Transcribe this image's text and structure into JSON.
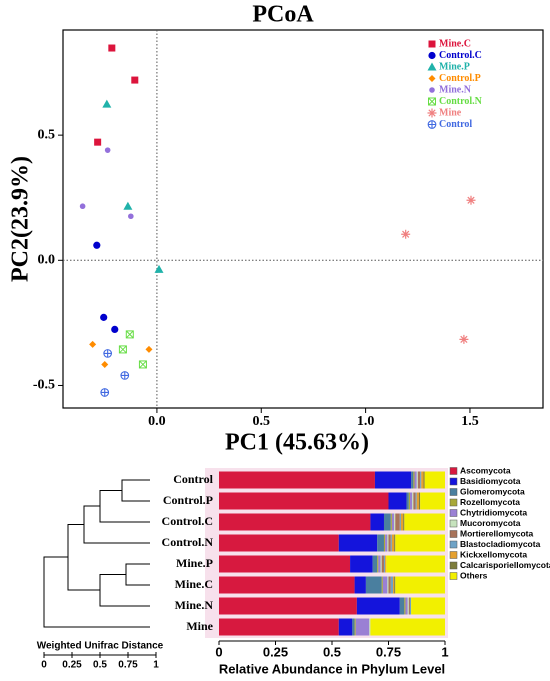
{
  "chart_data": [
    {
      "type": "scatter",
      "title": "PCoA",
      "xlabel": "PC1 (45.63%)",
      "ylabel": "PC2(23.9%)",
      "xlim": [
        -0.45,
        1.85
      ],
      "ylim": [
        -0.59,
        0.92
      ],
      "xticks": [
        {
          "value": 0,
          "label": "0.0"
        },
        0.5,
        {
          "value": 1,
          "label": "1.0"
        },
        {
          "value": 1.5,
          "label": "1.5"
        }
      ],
      "yticks": [
        -0.5,
        {
          "value": 0,
          "label": "0.0"
        },
        0.5
      ],
      "zero_lines": true,
      "legend": "upper right",
      "series": [
        {
          "name": "Mine.C",
          "color": "#dc143c",
          "marker": "square",
          "x": [
            -0.216,
            -0.106,
            -0.284
          ],
          "y": [
            0.848,
            0.72,
            0.472
          ]
        },
        {
          "name": "Control.C",
          "color": "#0000cd",
          "marker": "circle",
          "x": [
            -0.288,
            -0.255,
            -0.202
          ],
          "y": [
            0.06,
            -0.228,
            -0.276
          ]
        },
        {
          "name": "Mine.P",
          "color": "#20b2aa",
          "marker": "triangle",
          "x": [
            -0.24,
            -0.139,
            0.01
          ],
          "y": [
            0.624,
            0.216,
            -0.036
          ]
        },
        {
          "name": "Control.P",
          "color": "#ff8c00",
          "marker": "diamond",
          "x": [
            -0.308,
            -0.25,
            -0.038
          ],
          "y": [
            -0.336,
            -0.416,
            -0.356
          ]
        },
        {
          "name": "Mine.N",
          "color": "#9370db",
          "marker": "dot",
          "x": [
            -0.236,
            -0.356,
            -0.125
          ],
          "y": [
            0.44,
            0.216,
            0.176
          ]
        },
        {
          "name": "Control.N",
          "color": "#66dd44",
          "marker": "boxx",
          "x": [
            -0.13,
            -0.163,
            -0.067
          ],
          "y": [
            -0.296,
            -0.356,
            -0.416
          ]
        },
        {
          "name": "Mine",
          "color": "#f08080",
          "marker": "asterisk",
          "x": [
            1.505,
            1.192,
            1.471
          ],
          "y": [
            0.24,
            0.104,
            -0.316
          ]
        },
        {
          "name": "Control",
          "color": "#4169e1",
          "marker": "circleplus",
          "x": [
            -0.236,
            -0.154,
            -0.25
          ],
          "y": [
            -0.372,
            -0.46,
            -0.528
          ]
        }
      ]
    },
    {
      "type": "stacked_barh",
      "xlabel": "Relative Abundance in Phylum Level",
      "xlim": [
        0,
        1
      ],
      "xticks": [
        0,
        0.25,
        0.5,
        0.75,
        1
      ],
      "categories": [
        "Control",
        "Control.P",
        "Control.C",
        "Control.N",
        "Mine.P",
        "Mine.C",
        "Mine.N",
        "Mine"
      ],
      "series": [
        {
          "name": "Ascomycota",
          "color": "#d7193f",
          "values": [
            0.69,
            0.75,
            0.67,
            0.53,
            0.58,
            0.6,
            0.61,
            0.53
          ]
        },
        {
          "name": "Basidiomycota",
          "color": "#1414dc",
          "values": [
            0.16,
            0.08,
            0.06,
            0.17,
            0.1,
            0.05,
            0.19,
            0.06
          ]
        },
        {
          "name": "Glomeromycota",
          "color": "#4a7f9f",
          "values": [
            0.01,
            0.01,
            0.03,
            0.03,
            0.02,
            0.07,
            0.02,
            0.01
          ]
        },
        {
          "name": "Rozellomycota",
          "color": "#a8a838",
          "values": [
            0.005,
            0.005,
            0.005,
            0.005,
            0.005,
            0.005,
            0.005,
            0.005
          ]
        },
        {
          "name": "Chytridiomycota",
          "color": "#9a80d4",
          "values": [
            0.01,
            0.01,
            0.01,
            0.01,
            0.01,
            0.02,
            0.01,
            0.06
          ]
        },
        {
          "name": "Mucoromycota",
          "color": "#c6e3bd",
          "values": [
            0.005,
            0.005,
            0.005,
            0.005,
            0.005,
            0.005,
            0.005,
            0.005
          ]
        },
        {
          "name": "Mortierellomycota",
          "color": "#a8735a",
          "values": [
            0.01,
            0.01,
            0.02,
            0.01,
            0.01,
            0.01,
            0.005,
            0
          ]
        },
        {
          "name": "Blastocladiomycota",
          "color": "#6fa3c6",
          "values": [
            0.005,
            0.005,
            0.005,
            0.005,
            0.005,
            0.01,
            0.005,
            0
          ]
        },
        {
          "name": "Kickxellomycota",
          "color": "#e5a02e",
          "values": [
            0.01,
            0.01,
            0.01,
            0.01,
            0.005,
            0.005,
            0,
            0
          ]
        },
        {
          "name": "Calcarisporiellomycota",
          "color": "#7d7d3c",
          "values": [
            0.005,
            0.005,
            0.005,
            0.005,
            0,
            0.005,
            0,
            0
          ]
        },
        {
          "name": "Others",
          "color": "#f2f000",
          "values": [
            0.09,
            0.11,
            0.18,
            0.22,
            0.26,
            0.22,
            0.15,
            0.33
          ]
        }
      ]
    }
  ],
  "dendrogram": {
    "title": "Weighted Unifrac Distance",
    "ticks": [
      0,
      0.25,
      0.5,
      0.75,
      1
    ]
  }
}
